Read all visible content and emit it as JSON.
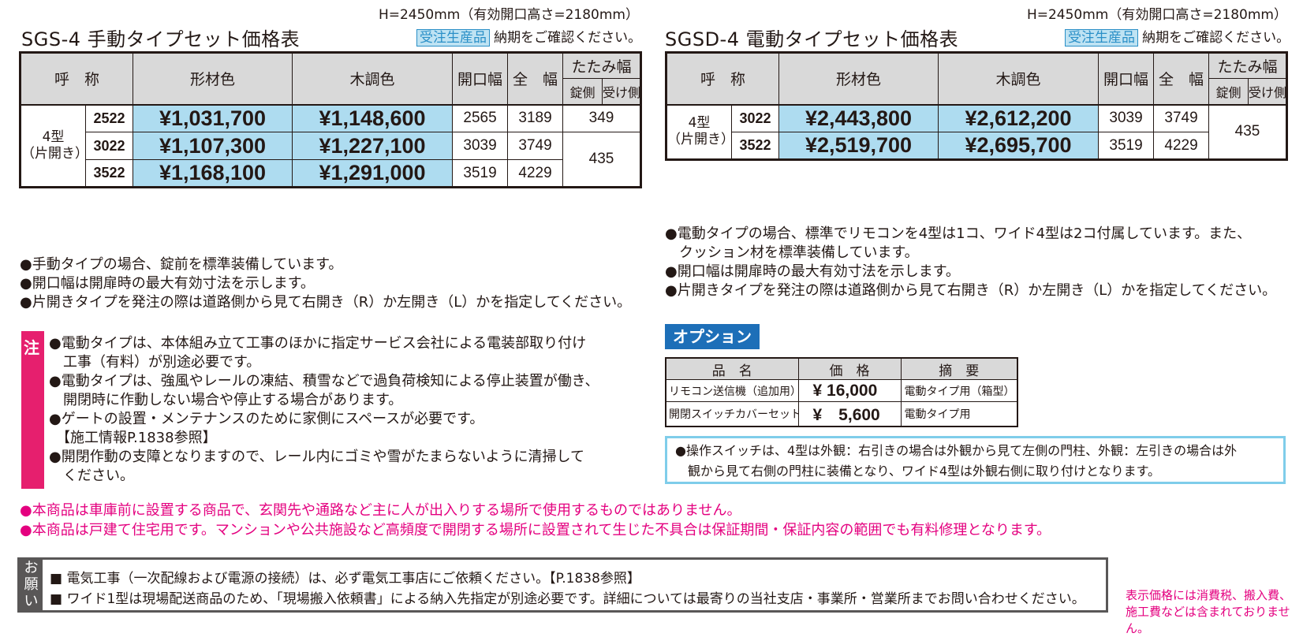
{
  "manual": {
    "height_note": "H=2450mm（有効開口高さ=2180mm）",
    "title": "SGS-4 手動タイプセット価格表",
    "badge": "受注生産品",
    "delivery": "納期をご確認ください。",
    "table": {
      "headers": {
        "name": "呼　称",
        "kei": "形材色",
        "moku": "木調色",
        "kaikou": "開口幅",
        "zen": "全　幅",
        "tatami": "たたみ幅",
        "jo": "錠側",
        "uke": "受け側"
      },
      "type": [
        "4型",
        "（片開き）"
      ],
      "rows": [
        {
          "size": "2522",
          "kei": "¥1,031,700",
          "moku": "¥1,148,600",
          "kaikou": "2565",
          "zen": "3189",
          "tatami": "349"
        },
        {
          "size": "3022",
          "kei": "¥1,107,300",
          "moku": "¥1,227,100",
          "kaikou": "3039",
          "zen": "3749",
          "tatami": "435"
        },
        {
          "size": "3522",
          "kei": "¥1,168,100",
          "moku": "¥1,291,000",
          "kaikou": "3519",
          "zen": "4229"
        }
      ]
    },
    "notes": [
      "●手動タイプの場合、錠前を標準装備しています。",
      "●開口幅は開扉時の最大有効寸法を示します。",
      "●片開きタイプを発注の際は道路側から見て右開き（R）か左開き（L）かを指定してください。"
    ],
    "warning": {
      "label": "注",
      "lines": [
        "●電動タイプは、本体組み立て工事のほかに指定サービス会社による電装部取り付け",
        "　工事（有料）が別途必要です。",
        "●電動タイプは、強風やレールの凍結、積雪などで過負荷検知による停止装置が働き、",
        "　開閉時に作動しない場合や停止する場合があります。",
        "●ゲートの設置・メンテナンスのために家側にスペースが必要です。",
        "　【施工情報P.1838参照】",
        "●開閉作動の支障となりますので、レール内にゴミや雪がたまらないように清掃して",
        "　ください。"
      ]
    }
  },
  "electric": {
    "height_note": "H=2450mm（有効開口高さ=2180mm）",
    "title": "SGSD-4 電動タイプセット価格表",
    "badge": "受注生産品",
    "delivery": "納期をご確認ください。",
    "table": {
      "type": [
        "4型",
        "（片開き）"
      ],
      "rows": [
        {
          "size": "3022",
          "kei": "¥2,443,800",
          "moku": "¥2,612,200",
          "kaikou": "3039",
          "zen": "3749",
          "tatami": "435"
        },
        {
          "size": "3522",
          "kei": "¥2,519,700",
          "moku": "¥2,695,700",
          "kaikou": "3519",
          "zen": "4229"
        }
      ]
    },
    "notes": [
      "●電動タイプの場合、標準でリモコンを4型は1コ、ワイド4型は2コ付属しています。また、",
      "　クッション材を標準装備しています。",
      "●開口幅は開扉時の最大有効寸法を示します。",
      "●片開きタイプを発注の際は道路側から見て右開き（R）か左開き（L）かを指定してください。"
    ]
  },
  "option": {
    "heading": "オプション",
    "headers": {
      "name": "品　名",
      "price": "価　格",
      "note": "摘　要"
    },
    "rows": [
      {
        "name": "リモコン送信機（追加用）",
        "price": "¥ 16,000",
        "note": "電動タイプ用（箱型）"
      },
      {
        "name": "開閉スイッチカバーセット",
        "price": "¥　5,600",
        "note": "電動タイプ用"
      }
    ],
    "switch_note": [
      "●操作スイッチは、4型は外観：右引きの場合は外観から見て左側の門柱、外観：左引きの場合は外",
      "　観から見て右側の門柱に装備となり、ワイド4型は外観右側に取り付けとなります。"
    ]
  },
  "pink_notes": [
    "●本商品は車庫前に設置する商品で、玄関先や通路など主に人が出入りする場所で使用するものではありません。",
    "●本商品は戸建て住宅用です。マンションや公共施設など高頻度で開閉する場所に設置されて生じた不具合は保証期間・保証内容の範囲でも有料修理となります。"
  ],
  "onegai": {
    "label": [
      "お",
      "願",
      "い"
    ],
    "lines": [
      "■ 電気工事（一次配線および電源の接続）は、必ず電気工事店にご依頼ください。【P.1838参照】",
      "■ ワイド1型は現場配送商品のため、「現場搬入依頼書」による納入先指定が別途必要です。詳細については最寄りの当社支店・事業所・営業所までお問い合わせください。"
    ]
  },
  "disclaimer": [
    "表示価格には消費税、搬入費、",
    "施工費などは含まれておりません。"
  ],
  "colors": {
    "price_cell": "#aedcf0",
    "badge": "#2a8fc7",
    "warning": "#e61f6e",
    "pink_text": "#e4007f",
    "option_head": "#1d6fb8",
    "header_gray": "#d9d9d9"
  }
}
